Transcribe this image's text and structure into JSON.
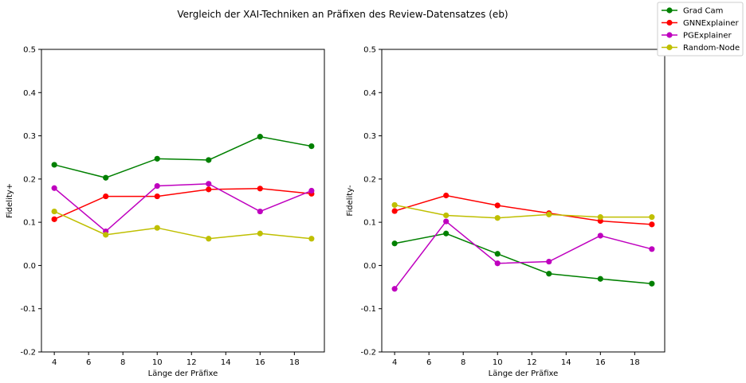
{
  "figure": {
    "suptitle": "Vergleich der XAI-Techniken an Präfixen des Review-Datensatzes (eb)"
  },
  "legend": {
    "placement": "top-right",
    "entries": [
      {
        "name": "Grad Cam",
        "color": "#008000"
      },
      {
        "name": "GNNExplainer",
        "color": "#ff0000"
      },
      {
        "name": "PGExplainer",
        "color": "#bf00bf"
      },
      {
        "name": "Random-Node",
        "color": "#bfbf00"
      }
    ]
  },
  "chart_data": [
    {
      "type": "line",
      "xlabel": "Länge der Präfixe",
      "ylabel": "Fidelity+",
      "xlim": [
        3.25,
        19.75
      ],
      "ylim": [
        -0.2,
        0.5
      ],
      "xticks": [
        "4",
        "6",
        "8",
        "10",
        "12",
        "14",
        "16",
        "18"
      ],
      "yticks": [
        "-0.2",
        "-0.1",
        "0.0",
        "0.1",
        "0.2",
        "0.3",
        "0.4",
        "0.5"
      ],
      "grid": false,
      "x": [
        4,
        7,
        10,
        13,
        16,
        19
      ],
      "series": [
        {
          "name": "Grad Cam",
          "color": "#008000",
          "values": [
            0.233,
            0.203,
            0.247,
            0.244,
            0.298,
            0.276
          ]
        },
        {
          "name": "GNNExplainer",
          "color": "#ff0000",
          "values": [
            0.107,
            0.16,
            0.16,
            0.176,
            0.178,
            0.166
          ]
        },
        {
          "name": "PGExplainer",
          "color": "#bf00bf",
          "values": [
            0.179,
            0.079,
            0.184,
            0.189,
            0.125,
            0.173
          ]
        },
        {
          "name": "Random-Node",
          "color": "#bfbf00",
          "values": [
            0.125,
            0.071,
            0.087,
            0.062,
            0.074,
            0.062
          ]
        }
      ]
    },
    {
      "type": "line",
      "xlabel": "Länge der Präfixe",
      "ylabel": "Fidelity-",
      "xlim": [
        3.25,
        19.75
      ],
      "ylim": [
        -0.2,
        0.5
      ],
      "xticks": [
        "4",
        "6",
        "8",
        "10",
        "12",
        "14",
        "16",
        "18"
      ],
      "yticks": [
        "-0.2",
        "-0.1",
        "0.0",
        "0.1",
        "0.2",
        "0.3",
        "0.4",
        "0.5"
      ],
      "grid": false,
      "x": [
        4,
        7,
        10,
        13,
        16,
        19
      ],
      "series": [
        {
          "name": "Grad Cam",
          "color": "#008000",
          "values": [
            0.051,
            0.074,
            0.027,
            -0.019,
            -0.031,
            -0.042
          ]
        },
        {
          "name": "GNNExplainer",
          "color": "#ff0000",
          "values": [
            0.126,
            0.162,
            0.139,
            0.121,
            0.103,
            0.095
          ]
        },
        {
          "name": "PGExplainer",
          "color": "#bf00bf",
          "values": [
            -0.054,
            0.102,
            0.005,
            0.009,
            0.069,
            0.038
          ]
        },
        {
          "name": "Random-Node",
          "color": "#bfbf00",
          "values": [
            0.14,
            0.116,
            0.11,
            0.118,
            0.112,
            0.112
          ]
        }
      ]
    }
  ]
}
